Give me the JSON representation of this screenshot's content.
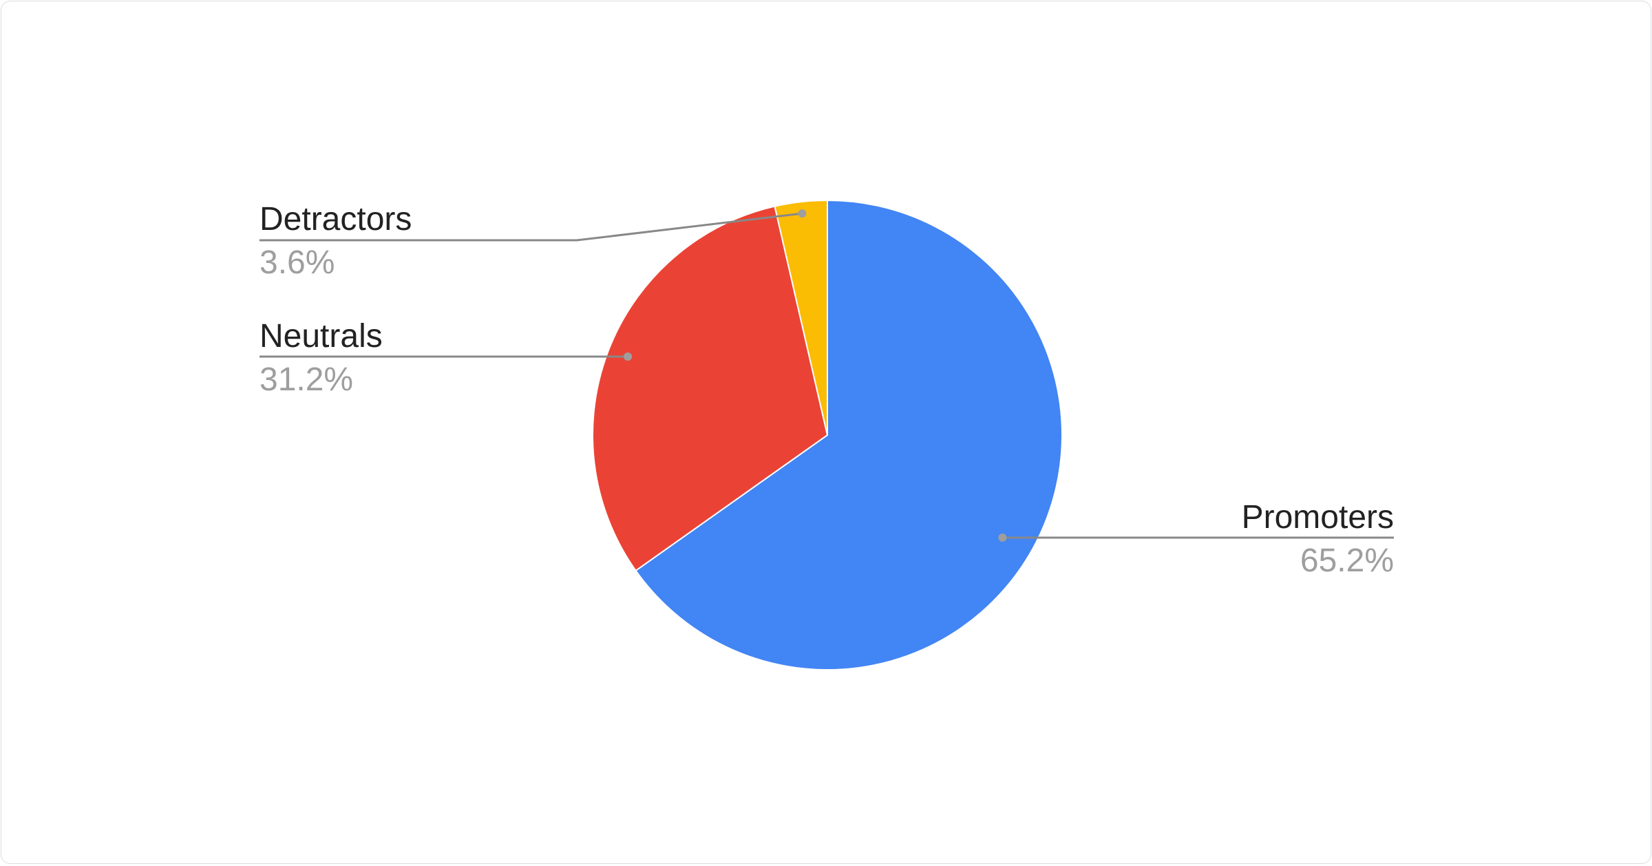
{
  "chart_data": {
    "type": "pie",
    "title": "",
    "start_angle": "top, clockwise",
    "slices": [
      {
        "label": "Promoters",
        "value": 65.2,
        "display": "65.2%",
        "color": "#4285F4"
      },
      {
        "label": "Neutrals",
        "value": 31.2,
        "display": "31.2%",
        "color": "#EA4335"
      },
      {
        "label": "Detractors",
        "value": 3.6,
        "display": "3.6%",
        "color": "#FBBC04"
      }
    ],
    "legend": "leader-labeled"
  }
}
